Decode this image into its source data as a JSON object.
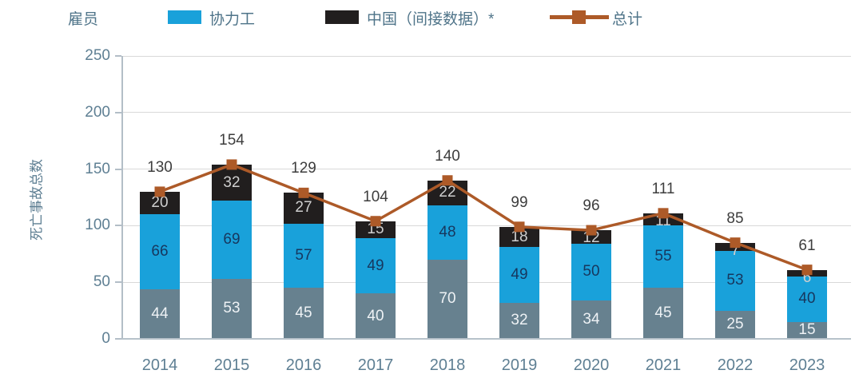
{
  "chart_data": {
    "type": "bar",
    "stacked": true,
    "title": "",
    "categories": [
      "2014",
      "2015",
      "2016",
      "2017",
      "2018",
      "2019",
      "2020",
      "2021",
      "2022",
      "2023"
    ],
    "series": [
      {
        "name": "雇员",
        "color": "#67818f",
        "label_color": "#eef2f5",
        "values": [
          44,
          53,
          45,
          40,
          70,
          32,
          34,
          45,
          25,
          15
        ]
      },
      {
        "name": "协力工",
        "color": "#19a1da",
        "label_color": "#17375e",
        "values": [
          66,
          69,
          57,
          49,
          48,
          49,
          50,
          55,
          53,
          40
        ]
      },
      {
        "name": "中国（间接数据）*",
        "color": "#211e1e",
        "label_color": "#cfcfcf",
        "values": [
          20,
          32,
          27,
          15,
          22,
          18,
          12,
          11,
          7,
          6
        ]
      }
    ],
    "line_series": {
      "name": "总计",
      "color": "#ad5a28",
      "marker": "square",
      "values": [
        130,
        154,
        129,
        104,
        140,
        99,
        96,
        111,
        85,
        61
      ]
    },
    "xlabel": "",
    "ylabel": "死亡事故总数",
    "ylim": [
      0,
      250
    ],
    "yticks": [
      0,
      50,
      100,
      150,
      200,
      250
    ],
    "grid": true,
    "legend_position": "top",
    "total_label_color": "#3d3d3d",
    "axis_text_color": "#5e7f93"
  }
}
